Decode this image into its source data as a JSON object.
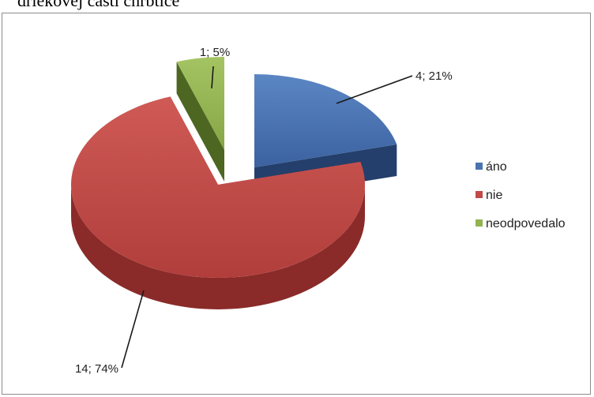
{
  "caption": "driekovej časti chrbtice",
  "chart_data": {
    "type": "pie",
    "style": "3d-exploded",
    "legend_position": "right",
    "slices": [
      {
        "name": "áno",
        "value": 4,
        "percent": 21,
        "label": "4; 21%",
        "color": "#4a74b0"
      },
      {
        "name": "nie",
        "value": 14,
        "percent": 74,
        "label": "14; 74%",
        "color": "#c24a47"
      },
      {
        "name": "neodpovedalo",
        "value": 1,
        "percent": 5,
        "label": "1; 5%",
        "color": "#93b350"
      }
    ]
  }
}
